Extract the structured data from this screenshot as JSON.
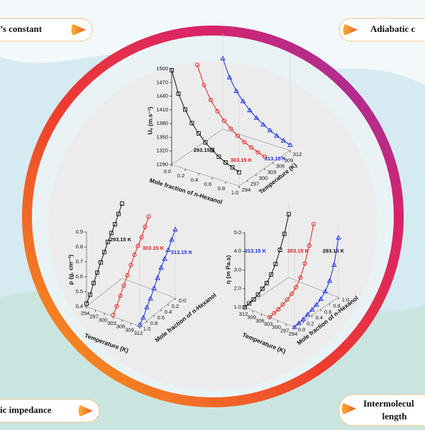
{
  "corners": {
    "top_left": "’s constant",
    "top_right": "Adiabatic c",
    "bottom_left": "ic impedance",
    "bottom_right": [
      "Intermolecul",
      "length"
    ]
  },
  "chart_data": [
    {
      "type": "line3d",
      "y_label": "Uᵥ (m.s⁻¹)",
      "x_label": "Mole fraction of n-Hexanol",
      "z_label": "Temperature (K)",
      "x": [
        0,
        0.1,
        0.2,
        0.3,
        0.4,
        0.5,
        0.6,
        0.7,
        0.8,
        0.9,
        1
      ],
      "xlim": [
        0,
        1
      ],
      "xticks": [
        {
          "value": 0,
          "label": "0.0"
        },
        0.2,
        0.4,
        0.6,
        0.8,
        {
          "value": 1,
          "label": "1.0"
        }
      ],
      "ylim": [
        1290,
        1500
      ],
      "yticks": [
        1290,
        1320,
        1350,
        1380,
        1410,
        1440,
        1470,
        1500
      ],
      "zticks": [
        294,
        297,
        300,
        303,
        306,
        309,
        312
      ],
      "series": [
        {
          "name": "293.15 K",
          "color": "#111111",
          "marker": "square",
          "values": [
            1497,
            1450,
            1420,
            1395,
            1377,
            1362,
            1350,
            1340,
            1332,
            1326,
            1320
          ]
        },
        {
          "name": "303.15 K",
          "color": "#e0201b",
          "marker": "circle",
          "values": [
            1470,
            1430,
            1402,
            1382,
            1366,
            1353,
            1342,
            1333,
            1326,
            1320,
            1315
          ]
        },
        {
          "name": "313.15 K",
          "color": "#1a2fe0",
          "marker": "triangle",
          "values": [
            1445,
            1408,
            1383,
            1365,
            1350,
            1338,
            1328,
            1320,
            1313,
            1307,
            1302
          ]
        }
      ]
    },
    {
      "type": "line3d",
      "y_label": "ρ (g. cm⁻³)",
      "x_label": "Mole fraction of n-Hexanol",
      "z_label": "Temperature (K)",
      "x": [
        0,
        0.1,
        0.2,
        0.3,
        0.4,
        0.5,
        0.6,
        0.7,
        0.8,
        0.9,
        1
      ],
      "xlim": [
        0,
        1
      ],
      "xticks": [
        {
          "value": 0,
          "label": "0.0"
        },
        0.2,
        0.4,
        0.6,
        0.8,
        {
          "value": 1,
          "label": "1.0"
        }
      ],
      "ylim": [
        0.4,
        0.9
      ],
      "yticks": [
        0.4,
        0.5,
        0.6,
        0.7,
        0.8,
        0.9
      ],
      "zticks": [
        294,
        297,
        300,
        303,
        306,
        309,
        312
      ],
      "series": [
        {
          "name": "293.15 K",
          "color": "#111111",
          "marker": "square",
          "values": [
            0.9,
            0.85,
            0.8,
            0.76,
            0.72,
            0.67,
            0.62,
            0.57,
            0.52,
            0.46,
            0.42
          ]
        },
        {
          "name": "303.15 K",
          "color": "#e0201b",
          "marker": "circle",
          "values": [
            0.88,
            0.83,
            0.78,
            0.74,
            0.7,
            0.65,
            0.6,
            0.55,
            0.5,
            0.45,
            0.41
          ]
        },
        {
          "name": "313.15 K",
          "color": "#1a2fe0",
          "marker": "triangle",
          "values": [
            0.86,
            0.81,
            0.76,
            0.72,
            0.68,
            0.63,
            0.58,
            0.53,
            0.49,
            0.44,
            0.41
          ]
        }
      ]
    },
    {
      "type": "line3d",
      "y_label": "η (m Pa.s)",
      "x_label": "Mole fraction of n-Hexanol",
      "z_label": "Temperature (K)",
      "x": [
        0,
        0.1,
        0.2,
        0.3,
        0.4,
        0.5,
        0.6,
        0.7,
        0.8,
        0.9,
        1
      ],
      "xlim": [
        0,
        1
      ],
      "xticks": [
        {
          "value": 0,
          "label": "0.0"
        },
        0.2,
        0.4,
        0.6,
        0.8,
        {
          "value": 1,
          "label": "1.0"
        }
      ],
      "ylim": [
        1,
        5
      ],
      "yticks": [
        {
          "value": 1,
          "label": "1.0"
        },
        {
          "value": 2,
          "label": "2.0"
        },
        {
          "value": 3,
          "label": "3.0"
        },
        {
          "value": 4,
          "label": "4.0"
        },
        {
          "value": 5,
          "label": "5.0"
        }
      ],
      "zticks": [
        294,
        297,
        300,
        303,
        306,
        309,
        312
      ],
      "series": [
        {
          "name": "293.15 K",
          "color": "#111111",
          "marker": "square",
          "values": [
            1,
            1.05,
            1.1,
            1.2,
            1.35,
            1.5,
            1.8,
            2.2,
            2.8,
            3.5,
            4.4
          ]
        },
        {
          "name": "303.15 K",
          "color": "#e0201b",
          "marker": "circle",
          "values": [
            1,
            1.05,
            1.1,
            1.2,
            1.3,
            1.45,
            1.65,
            2,
            2.6,
            3.4,
            4.4
          ]
        },
        {
          "name": "313.15 K",
          "color": "#1a2fe0",
          "marker": "triangle",
          "values": [
            1,
            1.05,
            1.1,
            1.2,
            1.3,
            1.4,
            1.55,
            1.8,
            2.2,
            2.9,
            4.2
          ]
        }
      ]
    }
  ]
}
